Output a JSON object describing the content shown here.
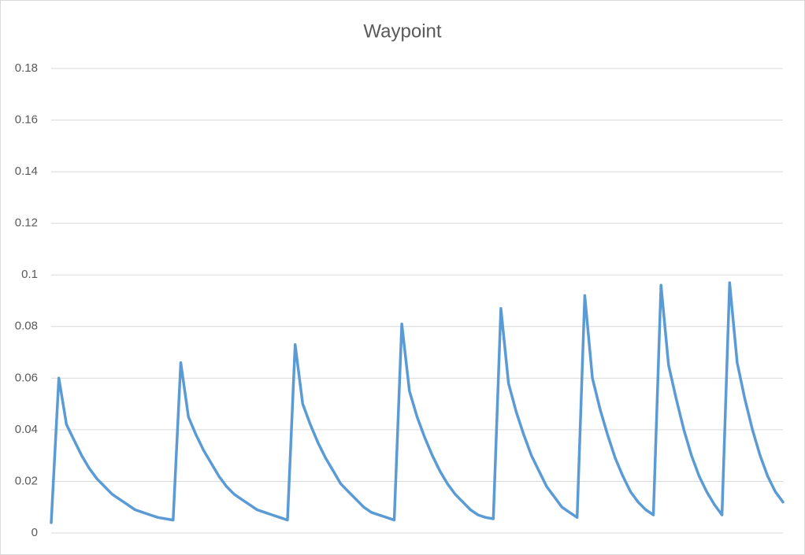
{
  "chart_data": {
    "type": "line",
    "title": "Waypoint",
    "series": [
      {
        "color": "#5b9bd5",
        "values": [
          0.004,
          0.06,
          0.042,
          0.036,
          0.03,
          0.025,
          0.021,
          0.018,
          0.015,
          0.013,
          0.011,
          0.009,
          0.008,
          0.007,
          0.006,
          0.0055,
          0.005,
          0.066,
          0.045,
          0.038,
          0.032,
          0.027,
          0.022,
          0.018,
          0.015,
          0.013,
          0.011,
          0.009,
          0.008,
          0.007,
          0.006,
          0.005,
          0.073,
          0.05,
          0.042,
          0.035,
          0.029,
          0.024,
          0.019,
          0.016,
          0.013,
          0.01,
          0.008,
          0.007,
          0.006,
          0.005,
          0.081,
          0.055,
          0.045,
          0.037,
          0.03,
          0.024,
          0.019,
          0.015,
          0.012,
          0.009,
          0.007,
          0.006,
          0.0055,
          0.087,
          0.058,
          0.047,
          0.038,
          0.03,
          0.024,
          0.018,
          0.014,
          0.01,
          0.008,
          0.006,
          0.092,
          0.06,
          0.048,
          0.038,
          0.029,
          0.022,
          0.016,
          0.012,
          0.009,
          0.007,
          0.096,
          0.065,
          0.052,
          0.04,
          0.03,
          0.022,
          0.016,
          0.011,
          0.007,
          0.097,
          0.066,
          0.052,
          0.04,
          0.03,
          0.022,
          0.016,
          0.012
        ]
      }
    ],
    "ylim": [
      0,
      0.18
    ],
    "yticks": [
      0,
      0.02,
      0.04,
      0.06,
      0.08,
      0.1,
      0.12,
      0.14,
      0.16,
      0.18
    ],
    "grid": true
  }
}
